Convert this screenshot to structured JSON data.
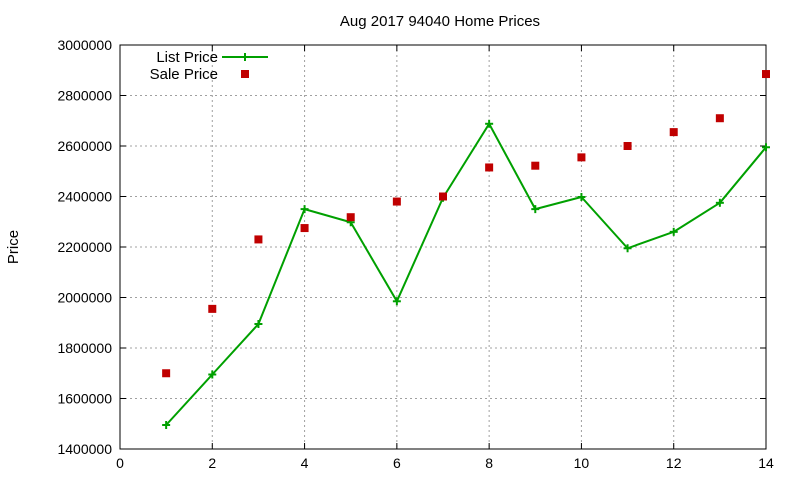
{
  "chart_data": {
    "type": "line",
    "title": "Aug 2017 94040 Home Prices",
    "xlabel": "",
    "ylabel": "Price",
    "xlim": [
      0,
      14
    ],
    "ylim": [
      1400000,
      3000000
    ],
    "xticks": [
      0,
      2,
      4,
      6,
      8,
      10,
      12,
      14
    ],
    "yticks": [
      1400000,
      1600000,
      1800000,
      2000000,
      2200000,
      2400000,
      2600000,
      2800000,
      3000000
    ],
    "grid": true,
    "legend_position": "top-left",
    "series": [
      {
        "name": "List Price",
        "style": "linespoints",
        "marker": "plus",
        "color": "#00a000",
        "x": [
          1,
          2,
          3,
          4,
          5,
          6,
          7,
          8,
          9,
          10,
          11,
          12,
          13,
          14
        ],
        "y": [
          1495000,
          1695000,
          1895000,
          2350000,
          2298000,
          1985000,
          2395000,
          2688000,
          2350000,
          2398000,
          2195000,
          2260000,
          2375000,
          2595000
        ]
      },
      {
        "name": "Sale Price",
        "style": "points",
        "marker": "square",
        "color": "#c00000",
        "x": [
          1,
          2,
          3,
          4,
          5,
          6,
          7,
          8,
          9,
          10,
          11,
          12,
          13,
          14
        ],
        "y": [
          1700000,
          1955000,
          2230000,
          2275000,
          2318000,
          2380000,
          2400000,
          2515000,
          2522000,
          2555000,
          2600000,
          2655000,
          2710000,
          2885000
        ]
      }
    ]
  }
}
